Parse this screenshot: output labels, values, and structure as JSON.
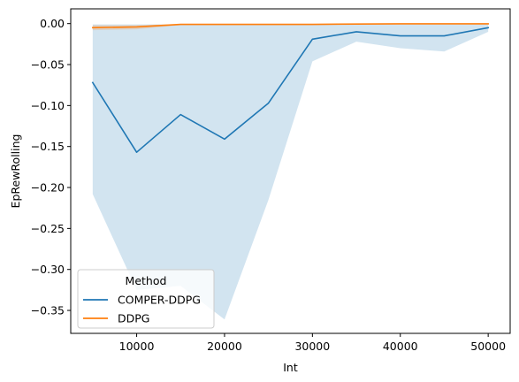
{
  "chart_data": {
    "type": "line",
    "xlabel": "Int",
    "ylabel": "EpRewRolling",
    "xlim": [
      2500,
      52500
    ],
    "ylim": [
      -0.378,
      0.018
    ],
    "x_ticks": [
      10000,
      20000,
      30000,
      40000,
      50000
    ],
    "x_tick_labels": [
      "10000",
      "20000",
      "30000",
      "40000",
      "50000"
    ],
    "y_ticks": [
      0.0,
      -0.05,
      -0.1,
      -0.15,
      -0.2,
      -0.25,
      -0.3,
      -0.35
    ],
    "y_tick_labels": [
      "0.00",
      "−0.05",
      "−0.10",
      "−0.15",
      "−0.20",
      "−0.25",
      "−0.30",
      "−0.35"
    ],
    "grid": false,
    "legend": {
      "title": "Method",
      "placement": "lower-left"
    },
    "x": [
      5000,
      10000,
      15000,
      20000,
      25000,
      30000,
      35000,
      40000,
      45000,
      50000
    ],
    "series": [
      {
        "name": "COMPER-DDPG",
        "color": "#1f77b4",
        "values": [
          -0.072,
          -0.157,
          -0.111,
          -0.141,
          -0.097,
          -0.019,
          -0.01,
          -0.015,
          -0.015,
          -0.005
        ],
        "ci_upper": [
          -0.001,
          -0.001,
          -0.001,
          -0.001,
          -0.001,
          -0.001,
          -0.001,
          -0.001,
          -0.001,
          -0.001
        ],
        "ci_lower": [
          -0.208,
          -0.325,
          -0.32,
          -0.361,
          -0.215,
          -0.046,
          -0.022,
          -0.03,
          -0.034,
          -0.01
        ]
      },
      {
        "name": "DDPG",
        "color": "#ff7f0e",
        "values": [
          -0.005,
          -0.004,
          -0.001,
          -0.001,
          -0.001,
          -0.001,
          -0.0005,
          -0.0003,
          -0.0003,
          -0.0003
        ],
        "ci_upper": [
          -0.002,
          -0.002,
          -0.0005,
          -0.0005,
          -0.0005,
          -0.0005,
          -0.0003,
          -0.0002,
          -0.0002,
          -0.0002
        ],
        "ci_lower": [
          -0.008,
          -0.007,
          -0.002,
          -0.002,
          -0.002,
          -0.002,
          -0.001,
          -0.0006,
          -0.0006,
          -0.0006
        ]
      }
    ]
  }
}
